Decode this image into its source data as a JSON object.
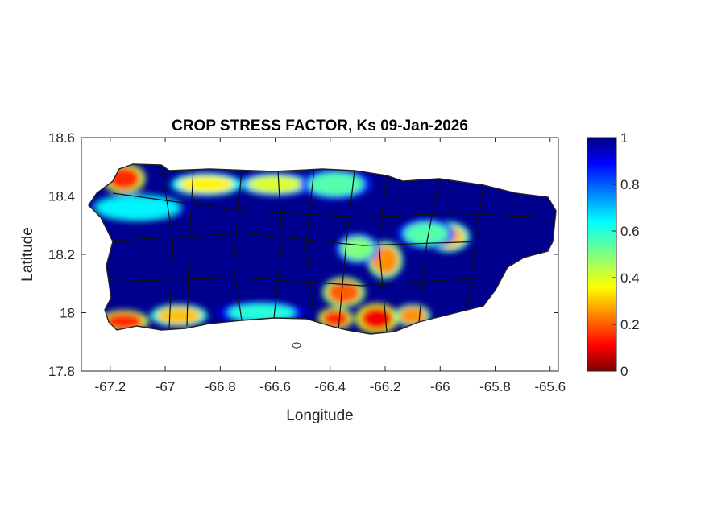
{
  "chart_data": {
    "type": "heatmap",
    "title": "CROP STRESS FACTOR, Ks  09-Jan-2026",
    "xlabel": "Longitude",
    "ylabel": "Latitude",
    "xlim": [
      -67.305,
      -65.57
    ],
    "ylim": [
      17.8,
      18.6
    ],
    "xticks": [
      -67.2,
      -67,
      -66.8,
      -66.6,
      -66.4,
      -66.2,
      -66,
      -65.8,
      -65.6
    ],
    "xtick_labels": [
      "-67.2",
      "-67",
      "-66.8",
      "-66.6",
      "-66.4",
      "-66.2",
      "-66",
      "-65.8",
      "-65.6"
    ],
    "yticks": [
      17.8,
      18,
      18.2,
      18.4,
      18.6
    ],
    "ytick_labels": [
      "17.8",
      "18",
      "18.2",
      "18.4",
      "18.6"
    ],
    "colorbar": {
      "colormap": "jet",
      "range": [
        0,
        1
      ],
      "ticks": [
        0,
        0.2,
        0.4,
        0.6,
        0.8,
        1
      ],
      "tick_labels": [
        "0",
        "0.2",
        "0.4",
        "0.6",
        "0.8",
        "1"
      ]
    },
    "background_value": 1,
    "stress_regions": [
      {
        "lon": -67.15,
        "lat": 18.46,
        "value": 0.15,
        "rlon": 0.06,
        "rlat": 0.04
      },
      {
        "lon": -66.85,
        "lat": 18.44,
        "value": 0.35,
        "rlon": 0.1,
        "rlat": 0.03
      },
      {
        "lon": -66.6,
        "lat": 18.44,
        "value": 0.4,
        "rlon": 0.1,
        "rlat": 0.03
      },
      {
        "lon": -66.38,
        "lat": 18.44,
        "value": 0.55,
        "rlon": 0.1,
        "rlat": 0.04
      },
      {
        "lon": -67.1,
        "lat": 18.36,
        "value": 0.65,
        "rlon": 0.15,
        "rlat": 0.04
      },
      {
        "lon": -67.15,
        "lat": 17.97,
        "value": 0.15,
        "rlon": 0.07,
        "rlat": 0.03
      },
      {
        "lon": -66.95,
        "lat": 17.99,
        "value": 0.3,
        "rlon": 0.08,
        "rlat": 0.03
      },
      {
        "lon": -66.65,
        "lat": 18.0,
        "value": 0.6,
        "rlon": 0.12,
        "rlat": 0.03
      },
      {
        "lon": -66.35,
        "lat": 18.07,
        "value": 0.2,
        "rlon": 0.06,
        "rlat": 0.04
      },
      {
        "lon": -66.38,
        "lat": 17.98,
        "value": 0.15,
        "rlon": 0.05,
        "rlat": 0.03
      },
      {
        "lon": -66.23,
        "lat": 17.98,
        "value": 0.1,
        "rlon": 0.06,
        "rlat": 0.04
      },
      {
        "lon": -66.1,
        "lat": 17.99,
        "value": 0.25,
        "rlon": 0.05,
        "rlat": 0.03
      },
      {
        "lon": -66.2,
        "lat": 18.18,
        "value": 0.25,
        "rlon": 0.05,
        "rlat": 0.05
      },
      {
        "lon": -66.3,
        "lat": 18.22,
        "value": 0.5,
        "rlon": 0.06,
        "rlat": 0.04
      },
      {
        "lon": -65.97,
        "lat": 18.26,
        "value": 0.3,
        "rlon": 0.06,
        "rlat": 0.04
      },
      {
        "lon": -66.05,
        "lat": 18.27,
        "value": 0.55,
        "rlon": 0.08,
        "rlat": 0.04
      }
    ]
  }
}
